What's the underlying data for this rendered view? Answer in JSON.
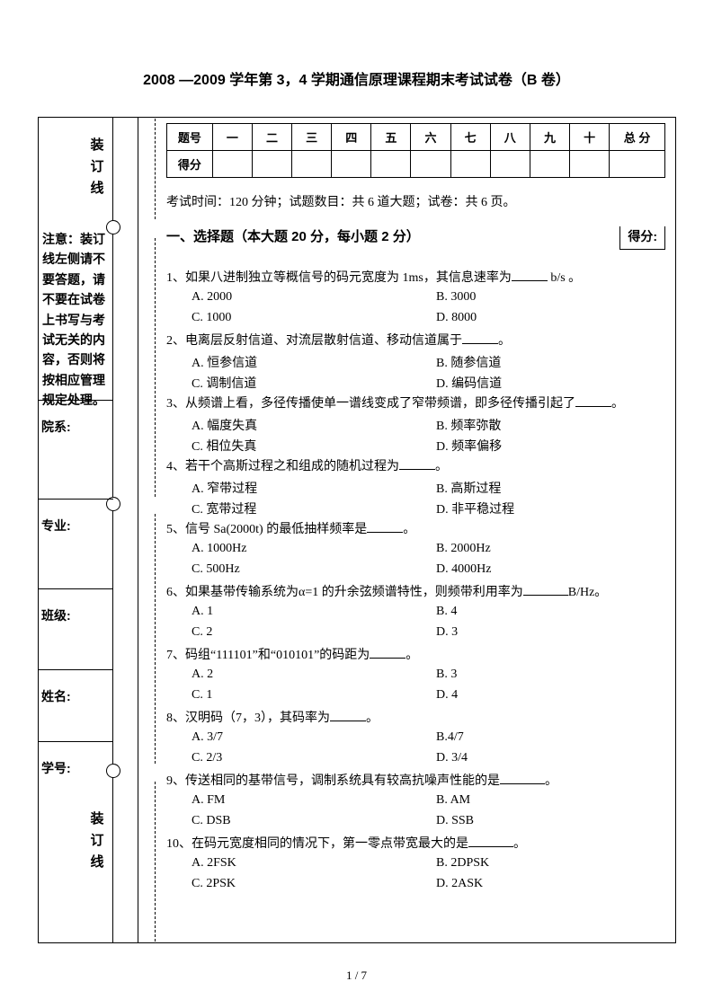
{
  "title": "2008 —2009 学年第 3，4 学期通信原理课程期末考试试卷（B 卷）",
  "binding_text": "装订线",
  "notice": "注意：装订线左侧请不要答题，请不要在试卷上书写与考试无关的内容，否则将按相应管理规定处理。",
  "fields": {
    "dept": "院系:",
    "major": "专业:",
    "class": "班级:",
    "name": "姓名:",
    "id": "学号:"
  },
  "score_table": {
    "row_label": "题号",
    "score_label": "得分",
    "cols": [
      "一",
      "二",
      "三",
      "四",
      "五",
      "六",
      "七",
      "八",
      "九",
      "十"
    ],
    "total_label": "总 分"
  },
  "exam_info": "考试时间：120 分钟；试题数目：共 6 道大题；试卷：共 6 页。",
  "score_box": "得分:",
  "section1_title": "一、选择题（本大题 20 分，每小题 2 分）",
  "questions": [
    {
      "n": "1",
      "stem_a": "、如果八进制独立等概信号的码元宽度为 1ms，其信息速率为",
      "stem_b": " b/s 。",
      "opts": [
        [
          "A. 2000",
          "B. 3000"
        ],
        [
          "C. 1000",
          "D. 8000"
        ]
      ]
    },
    {
      "n": "2",
      "stem_a": "、电离层反射信道、对流层散射信道、移动信道属于",
      "stem_b": "。",
      "opts": [
        [
          "A. 恒参信道",
          "B. 随参信道"
        ],
        [
          "C. 调制信道",
          "D. 编码信道"
        ]
      ]
    },
    {
      "n": "3",
      "stem_a": "、从频谱上看，多径传播使单一谱线变成了窄带频谱，即多径传播引起了",
      "stem_b": "。",
      "opts": [
        [
          "A. 幅度失真",
          "B. 频率弥散"
        ],
        [
          "C. 相位失真",
          "D. 频率偏移"
        ]
      ]
    },
    {
      "n": "4",
      "stem_a": "、若干个高斯过程之和组成的随机过程为",
      "stem_b": "。",
      "opts": [
        [
          "A. 窄带过程",
          "B. 高斯过程"
        ],
        [
          "C. 宽带过程",
          "D. 非平稳过程"
        ]
      ]
    },
    {
      "n": "5",
      "stem_a": "、信号 Sa(2000t) 的最低抽样频率是",
      "stem_b": "。",
      "opts": [
        [
          "A. 1000Hz",
          "B. 2000Hz"
        ],
        [
          "C. 500Hz",
          "D. 4000Hz"
        ]
      ]
    },
    {
      "n": "6",
      "stem_a": "、如果基带传输系统为α=1 的升余弦频谱特性，则频带利用率为",
      "stem_b": "B/Hz。",
      "opts": [
        [
          "A. 1",
          "B. 4"
        ],
        [
          "C. 2",
          "D. 3"
        ]
      ]
    },
    {
      "n": "7",
      "stem_a": "、码组“111101”和“010101”的码距为",
      "stem_b": "。",
      "opts": [
        [
          "A. 2",
          "B. 3"
        ],
        [
          "C. 1",
          "D. 4"
        ]
      ]
    },
    {
      "n": "8",
      "stem_a": "、汉明码（7，3），其码率为",
      "stem_b": "。",
      "opts": [
        [
          "A. 3/7",
          "B.4/7"
        ],
        [
          "C. 2/3",
          "D. 3/4"
        ]
      ]
    },
    {
      "n": "9",
      "stem_a": "、传送相同的基带信号，调制系统具有较高抗噪声性能的是",
      "stem_b": "。",
      "opts": [
        [
          "A. FM",
          "B. AM"
        ],
        [
          "C. DSB",
          "D. SSB"
        ]
      ]
    },
    {
      "n": "10",
      "stem_a": "、在码元宽度相同的情况下，第一零点带宽最大的是",
      "stem_b": "。",
      "opts": [
        [
          "A. 2FSK",
          "B. 2DPSK"
        ],
        [
          "C. 2PSK",
          "D. 2ASK"
        ]
      ]
    }
  ],
  "footer": "1 / 7"
}
